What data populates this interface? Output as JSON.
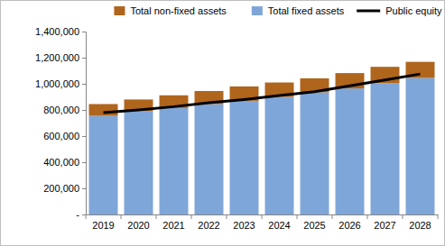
{
  "chart_data": {
    "type": "bar",
    "stacked": true,
    "grid": false,
    "legend": "top",
    "categories": [
      "2019",
      "2020",
      "2021",
      "2022",
      "2023",
      "2024",
      "2025",
      "2026",
      "2027",
      "2028"
    ],
    "series": [
      {
        "name": "Total non-fixed assets",
        "type": "bar",
        "color": "#b0651c",
        "values": [
          90000,
          90000,
          97000,
          100000,
          110000,
          110000,
          107000,
          117000,
          125000,
          123000
        ]
      },
      {
        "name": "Total fixed assets",
        "type": "bar",
        "color": "#7fa6d8",
        "values": [
          755000,
          790000,
          815000,
          845000,
          870000,
          900000,
          935000,
          965000,
          1005000,
          1045000
        ]
      },
      {
        "name": "Public equity",
        "type": "line",
        "color": "#000000",
        "values": [
          780000,
          800000,
          825000,
          855000,
          880000,
          910000,
          940000,
          985000,
          1030000,
          1075000
        ]
      }
    ],
    "ylim": [
      0,
      1400000
    ],
    "yticks": [
      {
        "value": 0,
        "label": "-"
      },
      {
        "value": 200000,
        "label": "200,000"
      },
      {
        "value": 400000,
        "label": "400,000"
      },
      {
        "value": 600000,
        "label": "600,000"
      },
      {
        "value": 800000,
        "label": "800,000"
      },
      {
        "value": 1000000,
        "label": "1,000,000"
      },
      {
        "value": 1200000,
        "label": "1,200,000"
      },
      {
        "value": 1400000,
        "label": "1,400,000"
      }
    ]
  }
}
